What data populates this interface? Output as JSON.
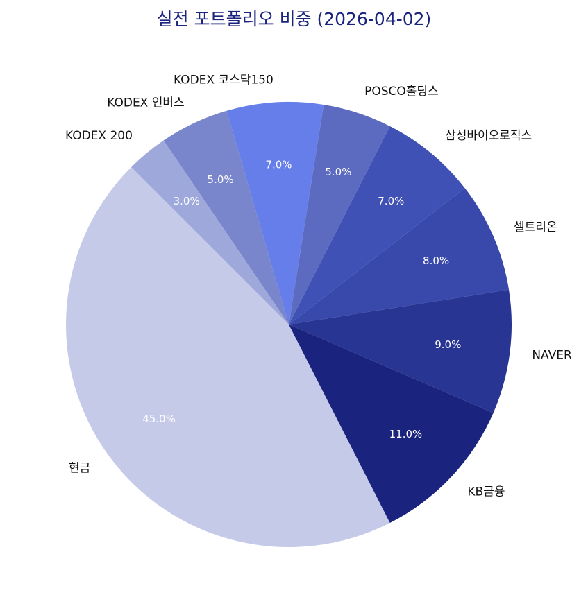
{
  "chart_data": {
    "type": "pie",
    "title": "실전 포트폴리오 비중 (2026-04-02)",
    "start_angle_deg": 135,
    "direction": "counterclockwise",
    "slices": [
      {
        "label": "현금",
        "value": 45.0,
        "pct_label": "45.0%",
        "color": "#c5cae9"
      },
      {
        "label": "KB금융",
        "value": 11.0,
        "pct_label": "11.0%",
        "color": "#1a237e"
      },
      {
        "label": "NAVER",
        "value": 9.0,
        "pct_label": "9.0%",
        "color": "#283593"
      },
      {
        "label": "셀트리온",
        "value": 8.0,
        "pct_label": "8.0%",
        "color": "#3949ab"
      },
      {
        "label": "삼성바이오로직스",
        "value": 7.0,
        "pct_label": "7.0%",
        "color": "#3f51b5"
      },
      {
        "label": "POSCO홀딩스",
        "value": 5.0,
        "pct_label": "5.0%",
        "color": "#5c6bc0"
      },
      {
        "label": "KODEX 코스닥150",
        "value": 7.0,
        "pct_label": "7.0%",
        "color": "#667eea"
      },
      {
        "label": "KODEX 인버스",
        "value": 5.0,
        "pct_label": "5.0%",
        "color": "#7986cb"
      },
      {
        "label": "KODEX 200",
        "value": 3.0,
        "pct_label": "3.0%",
        "color": "#9fa8da"
      }
    ]
  }
}
